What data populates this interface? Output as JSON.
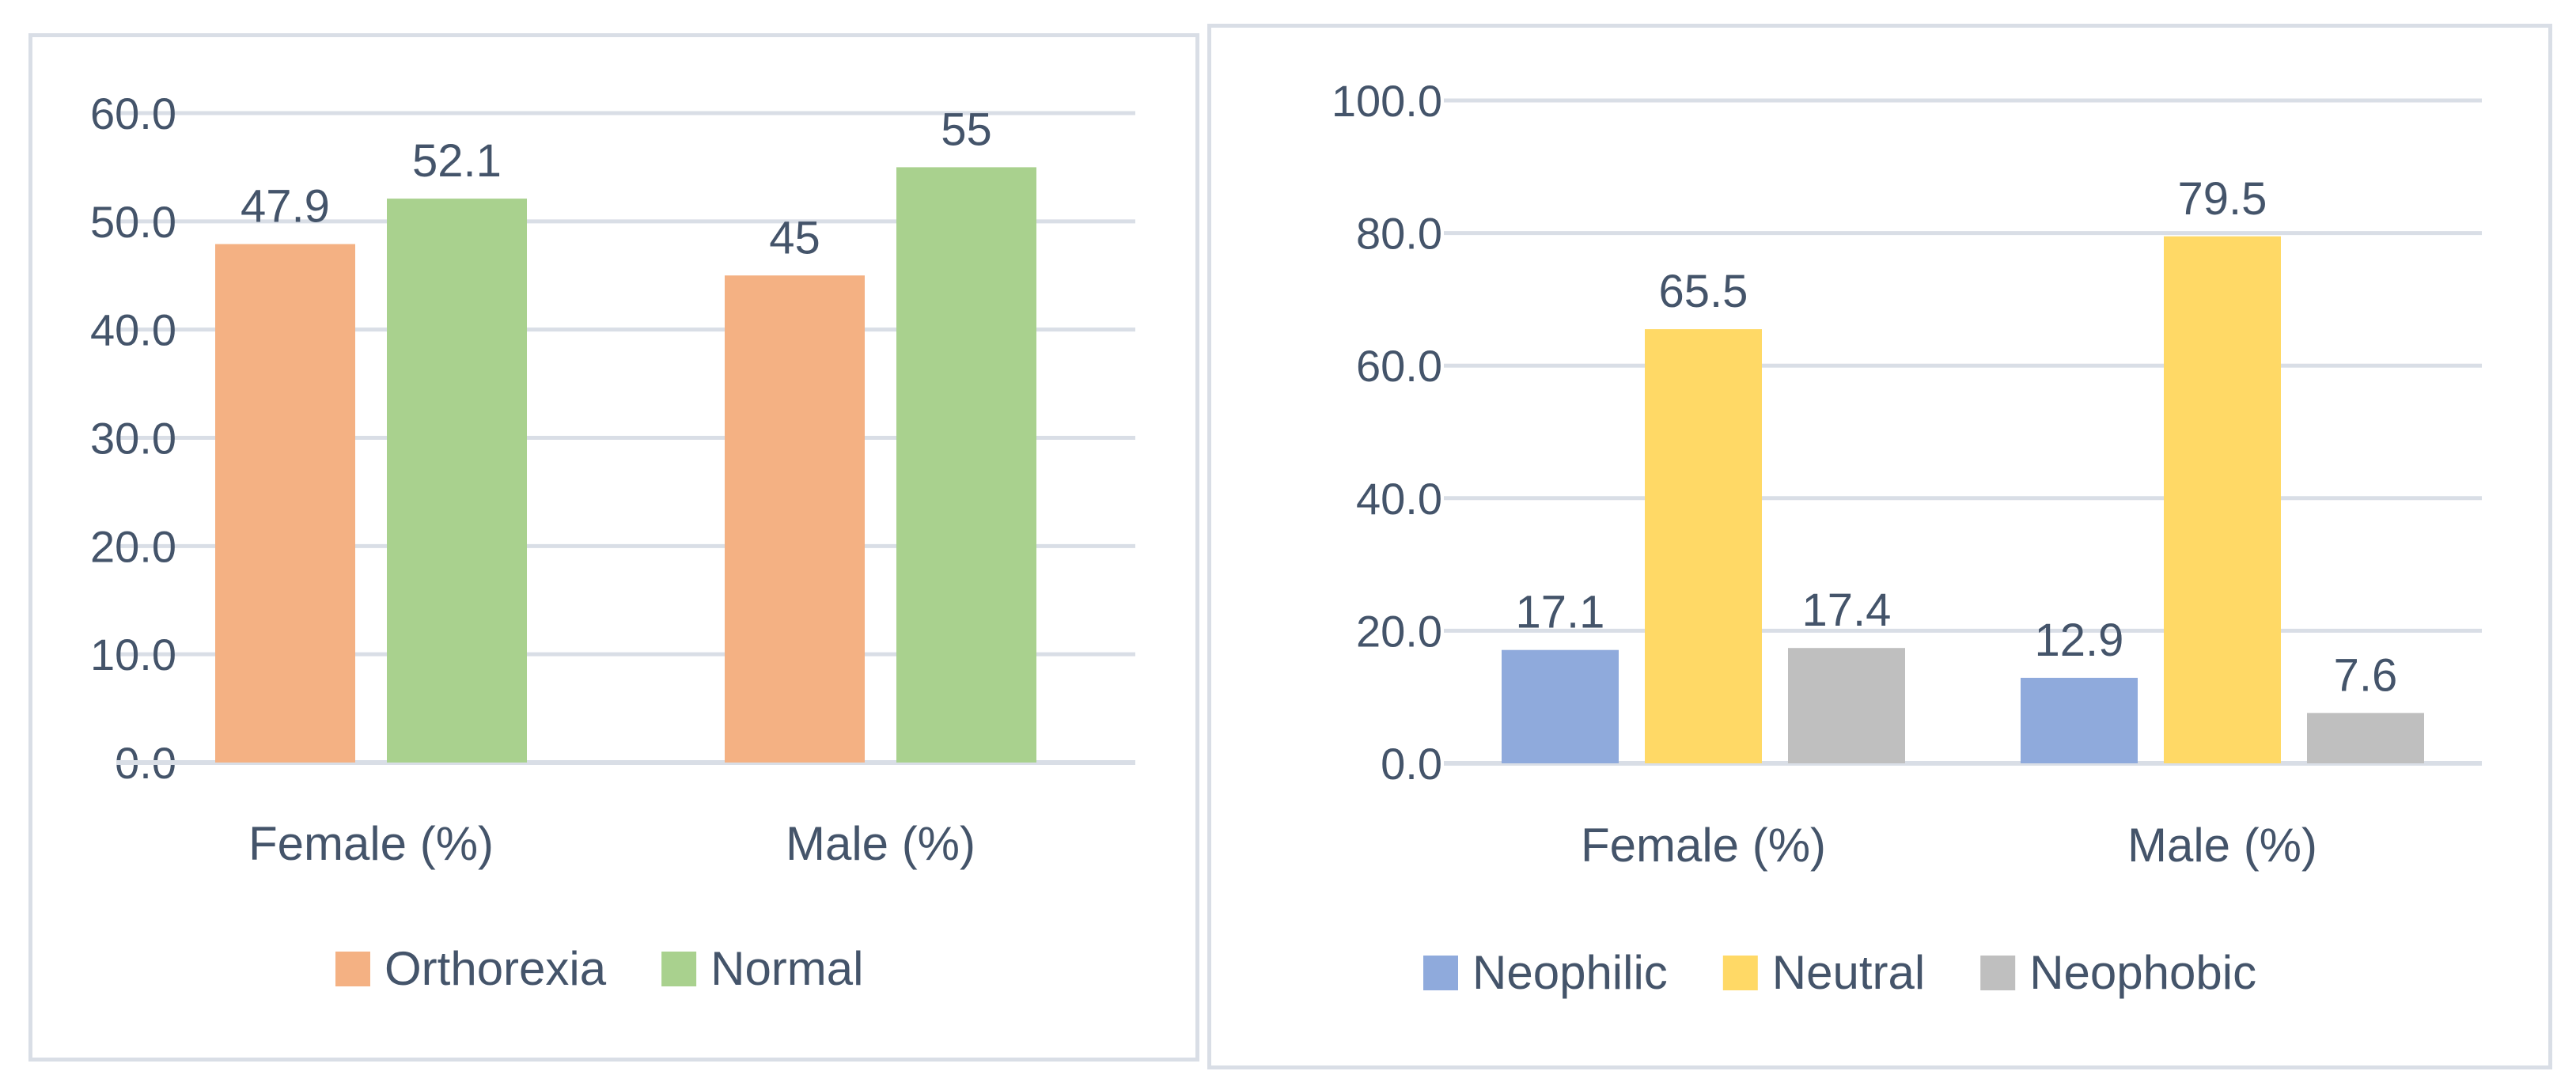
{
  "chart_data": [
    {
      "type": "bar",
      "categories": [
        "Female (%)",
        "Male (%)"
      ],
      "series": [
        {
          "name": "Orthorexia",
          "color": "#f4b183",
          "values": [
            47.9,
            45
          ],
          "labels": [
            "47.9",
            "45"
          ]
        },
        {
          "name": "Normal",
          "color": "#a9d18e",
          "values": [
            52.1,
            55
          ],
          "labels": [
            "52.1",
            "55"
          ]
        }
      ],
      "ylim": [
        0,
        60
      ],
      "yticks": [
        "0.0",
        "10.0",
        "20.0",
        "30.0",
        "40.0",
        "50.0",
        "60.0"
      ],
      "ytick_values": [
        0,
        10,
        20,
        30,
        40,
        50,
        60
      ],
      "grid": true,
      "legend": "bottom",
      "title": "",
      "xlabel": "",
      "ylabel": ""
    },
    {
      "type": "bar",
      "categories": [
        "Female (%)",
        "Male (%)"
      ],
      "series": [
        {
          "name": "Neophilic",
          "color": "#8faadc",
          "values": [
            17.1,
            12.9
          ],
          "labels": [
            "17.1",
            "12.9"
          ]
        },
        {
          "name": "Neutral",
          "color": "#ffd966",
          "values": [
            65.5,
            79.5
          ],
          "labels": [
            "65.5",
            "79.5"
          ]
        },
        {
          "name": "Neophobic",
          "color": "#bfbfbf",
          "values": [
            17.4,
            7.6
          ],
          "labels": [
            "17.4",
            "7.6"
          ]
        }
      ],
      "ylim": [
        0,
        100
      ],
      "yticks": [
        "0.0",
        "20.0",
        "40.0",
        "60.0",
        "80.0",
        "100.0"
      ],
      "ytick_values": [
        0,
        20,
        40,
        60,
        80,
        100
      ],
      "grid": true,
      "legend": "bottom",
      "title": "",
      "xlabel": "",
      "ylabel": ""
    }
  ]
}
